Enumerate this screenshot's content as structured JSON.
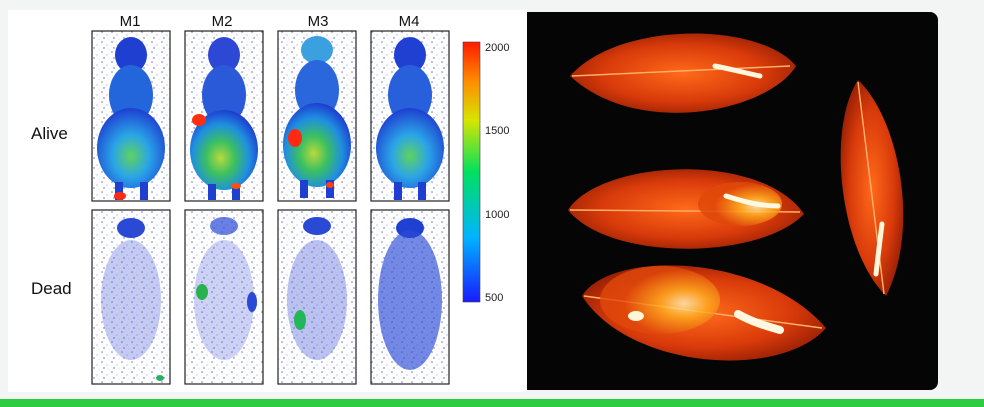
{
  "mice": {
    "columns": [
      "M1",
      "M2",
      "M3",
      "M4"
    ],
    "rows": [
      "Alive",
      "Dead"
    ]
  },
  "colorbar": {
    "ticks": [
      "2000",
      "1500",
      "1000",
      "500"
    ],
    "colors": [
      "#1a1aff",
      "#00b4ff",
      "#00e060",
      "#d8e400",
      "#ff8c00",
      "#ff1a00"
    ]
  },
  "colors": {
    "panel_left": "#ffffff",
    "panel_right": "#050505",
    "bottom_bar": "#2ecc40"
  }
}
